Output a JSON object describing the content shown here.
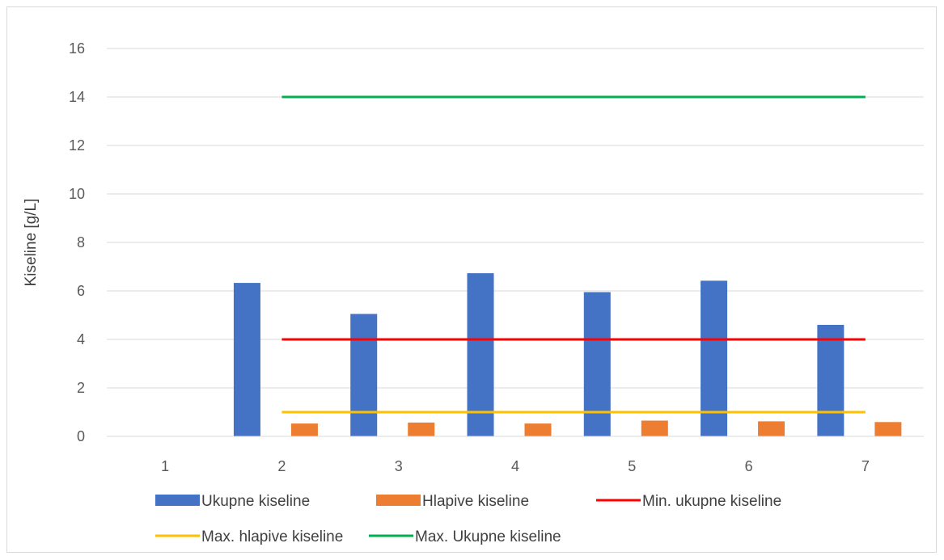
{
  "chart_data": {
    "type": "bar",
    "title": "",
    "xlabel": "",
    "ylabel": "Kiseline [g/L]",
    "ylim": [
      0,
      16
    ],
    "yticks": [
      "0",
      "2",
      "4",
      "6",
      "8",
      "10",
      "12",
      "14",
      "16"
    ],
    "categories": [
      "1",
      "2",
      "3",
      "4",
      "5",
      "6",
      "7"
    ],
    "grid": true,
    "legend_position": "bottom",
    "bar_series": [
      {
        "name": "Ukupne kiseline",
        "color": "#4472c4",
        "values": [
          null,
          6.33,
          5.05,
          6.73,
          5.95,
          6.42,
          4.6
        ]
      },
      {
        "name": "Hlapive kiseline",
        "color": "#ed7d31",
        "values": [
          null,
          0.53,
          0.57,
          0.53,
          0.65,
          0.62,
          0.59
        ]
      }
    ],
    "line_series": [
      {
        "name": "Min. ukupne kiseline",
        "color": "#ff0000",
        "values": [
          null,
          4,
          4,
          4,
          4,
          4,
          4
        ]
      },
      {
        "name": "Max. hlapive kiseline",
        "color": "#ffc000",
        "values": [
          null,
          1,
          1,
          1,
          1,
          1,
          1
        ]
      },
      {
        "name": "Max. Ukupne kiseline",
        "color": "#00b050",
        "values": [
          null,
          14,
          14,
          14,
          14,
          14,
          14
        ]
      }
    ],
    "legend": [
      {
        "label": "Ukupne kiseline",
        "kind": "bar",
        "color": "#4472c4"
      },
      {
        "label": "Hlapive kiseline",
        "kind": "bar",
        "color": "#ed7d31"
      },
      {
        "label": "Min. ukupne kiseline",
        "kind": "line",
        "color": "#ff0000"
      },
      {
        "label": "Max. hlapive kiseline",
        "kind": "line",
        "color": "#ffc000"
      },
      {
        "label": "Max. Ukupne kiseline",
        "kind": "line",
        "color": "#00b050"
      }
    ]
  }
}
